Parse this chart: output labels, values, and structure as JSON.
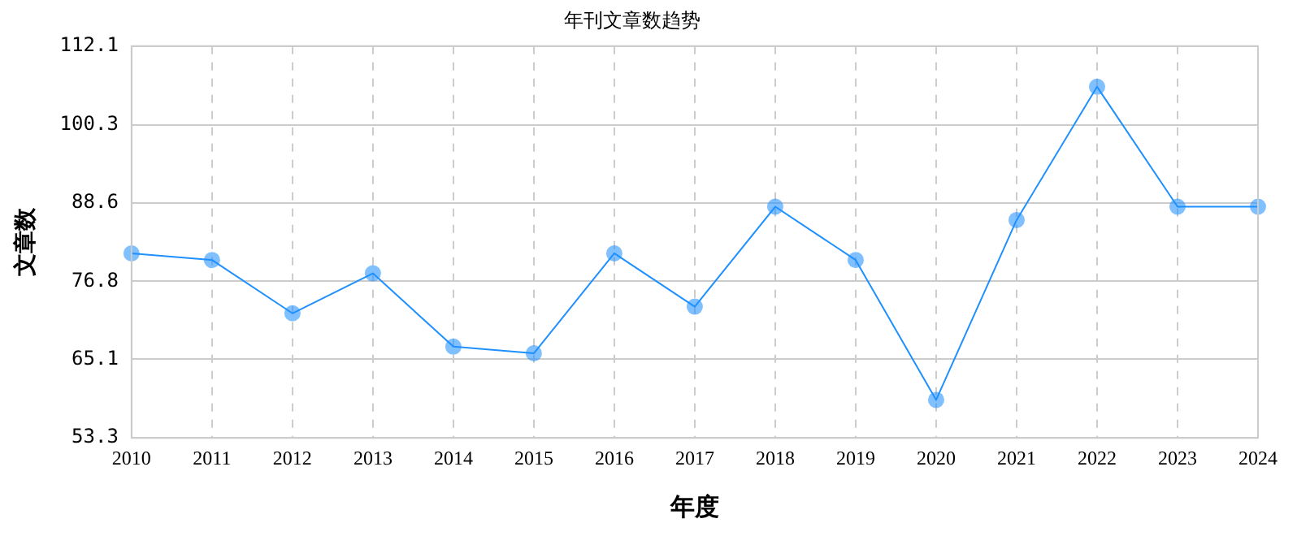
{
  "chart_data": {
    "type": "line",
    "title": "年刊文章数趋势",
    "xlabel": "年度",
    "ylabel": "文章数",
    "categories": [
      "2010",
      "2011",
      "2012",
      "2013",
      "2014",
      "2015",
      "2016",
      "2017",
      "2018",
      "2019",
      "2020",
      "2021",
      "2022",
      "2023",
      "2024"
    ],
    "series": [
      {
        "color": "#1e90ff",
        "values": [
          81,
          80,
          72,
          78,
          67,
          66,
          81,
          73,
          88,
          80,
          59,
          86,
          106,
          88,
          88
        ]
      }
    ],
    "ylim": [
      53.3,
      112.1
    ],
    "yticks": [
      53.3,
      65.1,
      76.8,
      88.6,
      100.3,
      112.1
    ],
    "grid": true,
    "legend": false,
    "marker": "circle",
    "line_style": "solid"
  }
}
